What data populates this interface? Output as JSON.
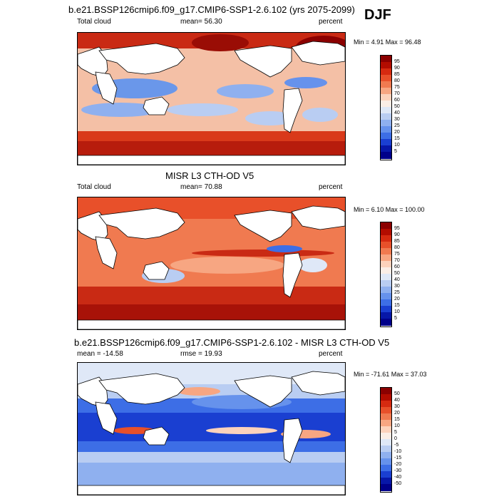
{
  "season": "DJF",
  "panels": [
    {
      "id": "model",
      "title": "b.e21.BSSP126cmip6.f09_g17.CMIP6-SSP1-2.6.102 (yrs 2075-2099)",
      "left_label": "Total cloud",
      "center_label": "mean=  56.30",
      "right_label": "percent",
      "minmax": "Min =   4.91  Max =  96.48",
      "colorbar_labels": [
        "95",
        "90",
        "85",
        "80",
        "75",
        "70",
        "60",
        "50",
        "40",
        "30",
        "25",
        "20",
        "15",
        "10",
        "5"
      ],
      "colors": [
        "#8b0000",
        "#b30c00",
        "#d62a10",
        "#e8502a",
        "#f07a50",
        "#f7a682",
        "#fcd2bc",
        "#fbeee6",
        "#dfe8f7",
        "#b9cdf2",
        "#8fb0ef",
        "#6692ec",
        "#3d6ee6",
        "#1a3fd1",
        "#0717a8",
        "#00008a"
      ]
    },
    {
      "id": "obs",
      "title": "MISR L3 CTH-OD V5",
      "left_label": "Total cloud",
      "center_label": "mean=  70.88",
      "right_label": "percent",
      "minmax": "Min =   6.10  Max = 100.00",
      "colorbar_labels": [
        "95",
        "90",
        "85",
        "80",
        "75",
        "70",
        "60",
        "50",
        "40",
        "30",
        "25",
        "20",
        "15",
        "10",
        "5"
      ],
      "colors": [
        "#8b0000",
        "#b30c00",
        "#d62a10",
        "#e8502a",
        "#f07a50",
        "#f7a682",
        "#fcd2bc",
        "#fbeee6",
        "#dfe8f7",
        "#b9cdf2",
        "#8fb0ef",
        "#6692ec",
        "#3d6ee6",
        "#1a3fd1",
        "#0717a8",
        "#00008a"
      ]
    },
    {
      "id": "diff",
      "title": "b.e21.BSSP126cmip6.f09_g17.CMIP6-SSP1-2.6.102 - MISR L3 CTH-OD V5",
      "left_label": "mean = -14.58",
      "center_label": "rmse =  19.93",
      "right_label": "percent",
      "minmax": "Min = -71.61  Max =  37.03",
      "colorbar_labels": [
        "50",
        "40",
        "30",
        "20",
        "15",
        "10",
        "5",
        "0",
        "-5",
        "-10",
        "-15",
        "-20",
        "-30",
        "-40",
        "-50"
      ],
      "colors": [
        "#8b0000",
        "#b30c00",
        "#d62a10",
        "#e8502a",
        "#f07a50",
        "#f7a682",
        "#fcd2bc",
        "#fbeee6",
        "#dfe8f7",
        "#b9cdf2",
        "#8fb0ef",
        "#6692ec",
        "#3d6ee6",
        "#1a3fd1",
        "#0717a8",
        "#00008a"
      ]
    }
  ]
}
